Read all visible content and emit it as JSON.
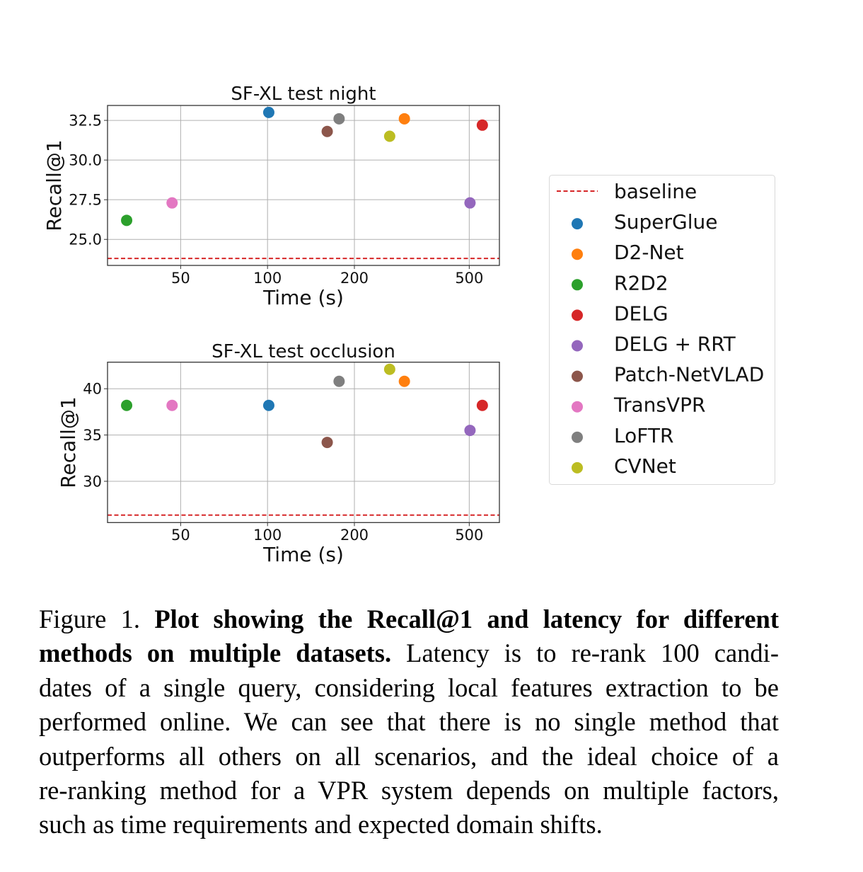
{
  "chart_data": [
    {
      "type": "scatter",
      "title": "SF-XL test night",
      "xlabel": "Time (s)",
      "ylabel": "Recall@1",
      "xscale": "log",
      "xlim": [
        27.9,
        636
      ],
      "ylim": [
        23.36,
        33.44
      ],
      "xticks": [
        50,
        100,
        200,
        500
      ],
      "xtick_labels": [
        "50",
        "100",
        "200",
        "500"
      ],
      "yticks": [
        25.0,
        27.5,
        30.0,
        32.5
      ],
      "ytick_labels": [
        "25.0",
        "27.5",
        "30.0",
        "32.5"
      ],
      "grid": true,
      "baseline": 23.8,
      "series": [
        {
          "name": "SuperGlue",
          "x": 101,
          "y": 33.0
        },
        {
          "name": "D2-Net",
          "x": 298,
          "y": 32.6
        },
        {
          "name": "R2D2",
          "x": 32.5,
          "y": 26.2
        },
        {
          "name": "DELG",
          "x": 555,
          "y": 32.2
        },
        {
          "name": "DELG + RRT",
          "x": 503,
          "y": 27.3
        },
        {
          "name": "Patch-NetVLAD",
          "x": 161,
          "y": 31.8
        },
        {
          "name": "TransVPR",
          "x": 46.7,
          "y": 27.3
        },
        {
          "name": "LoFTR",
          "x": 177,
          "y": 32.6
        },
        {
          "name": "CVNet",
          "x": 265,
          "y": 31.5
        }
      ]
    },
    {
      "type": "scatter",
      "title": "SF-XL test occlusion",
      "xlabel": "Time (s)",
      "ylabel": "Recall@1",
      "xscale": "log",
      "xlim": [
        27.9,
        636
      ],
      "ylim": [
        25.54,
        42.87
      ],
      "xticks": [
        50,
        100,
        200,
        500
      ],
      "xtick_labels": [
        "50",
        "100",
        "200",
        "500"
      ],
      "yticks": [
        30,
        35,
        40
      ],
      "ytick_labels": [
        "30",
        "35",
        "40"
      ],
      "grid": true,
      "baseline": 26.35,
      "series": [
        {
          "name": "SuperGlue",
          "x": 101,
          "y": 38.2
        },
        {
          "name": "D2-Net",
          "x": 298,
          "y": 40.8
        },
        {
          "name": "R2D2",
          "x": 32.5,
          "y": 38.2
        },
        {
          "name": "DELG",
          "x": 555,
          "y": 38.2
        },
        {
          "name": "DELG + RRT",
          "x": 503,
          "y": 35.5
        },
        {
          "name": "Patch-NetVLAD",
          "x": 161,
          "y": 34.2
        },
        {
          "name": "TransVPR",
          "x": 46.7,
          "y": 38.2
        },
        {
          "name": "LoFTR",
          "x": 177,
          "y": 40.8
        },
        {
          "name": "CVNet",
          "x": 265,
          "y": 42.1
        }
      ]
    }
  ],
  "legend": {
    "placement": "right",
    "baseline_label": "baseline",
    "baseline_color": "#d62728",
    "entries": [
      {
        "name": "SuperGlue",
        "color": "#1f77b4"
      },
      {
        "name": "D2-Net",
        "color": "#ff7f0e"
      },
      {
        "name": "R2D2",
        "color": "#2ca02c"
      },
      {
        "name": "DELG",
        "color": "#d62728"
      },
      {
        "name": "DELG + RRT",
        "color": "#9467bd"
      },
      {
        "name": "Patch-NetVLAD",
        "color": "#8c564b"
      },
      {
        "name": "TransVPR",
        "color": "#e377c2"
      },
      {
        "name": "LoFTR",
        "color": "#7f7f7f"
      },
      {
        "name": "CVNet",
        "color": "#bcbd22"
      }
    ]
  },
  "caption": {
    "lines": [
      {
        "normal": "Figure 1. ",
        "bold": "Plot showing the Recall@1 and latency for different",
        "rest": ""
      },
      {
        "normal": "",
        "bold": "methods on multiple datasets.",
        "rest": " Latency is to re-rank 100 candi-"
      },
      {
        "normal": "dates of a single query, considering local features extraction to be",
        "bold": "",
        "rest": ""
      },
      {
        "normal": "performed online.  We can see that there is no single method that",
        "bold": "",
        "rest": ""
      },
      {
        "normal": "outperforms all others on all scenarios, and the ideal choice of a",
        "bold": "",
        "rest": ""
      },
      {
        "normal": "re-ranking method for a VPR system depends on multiple factors,",
        "bold": "",
        "rest": ""
      },
      {
        "normal": "such as time requirements and expected domain shifts.",
        "bold": "",
        "rest": ""
      }
    ]
  }
}
